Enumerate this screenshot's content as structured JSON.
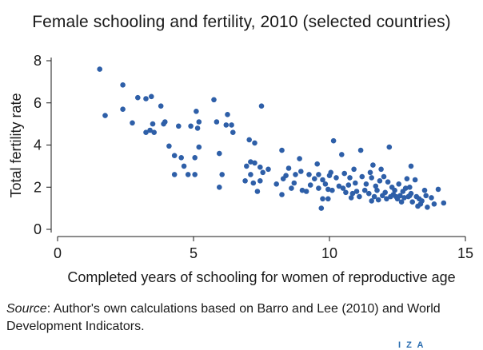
{
  "chart_data": {
    "type": "scatter",
    "title": "Female schooling and fertility, 2010 (selected countries)",
    "xlabel": "Completed years of schooling for women of reproductive age",
    "ylabel": "Total fertility rate",
    "xlim": [
      0,
      15
    ],
    "ylim": [
      0,
      8
    ],
    "xticks": [
      0,
      5,
      10,
      15
    ],
    "yticks": [
      0,
      2,
      4,
      6,
      8
    ],
    "grid": false,
    "legend": "none",
    "marker_color": "#2e5fa8",
    "points": [
      [
        1.55,
        7.6
      ],
      [
        1.75,
        5.4
      ],
      [
        2.4,
        6.85
      ],
      [
        2.4,
        5.7
      ],
      [
        2.75,
        5.05
      ],
      [
        2.95,
        6.25
      ],
      [
        3.25,
        6.2
      ],
      [
        3.25,
        4.6
      ],
      [
        3.4,
        4.7
      ],
      [
        3.45,
        6.3
      ],
      [
        3.5,
        5.0
      ],
      [
        3.55,
        4.6
      ],
      [
        3.8,
        5.85
      ],
      [
        3.9,
        5.0
      ],
      [
        3.95,
        5.1
      ],
      [
        4.1,
        3.95
      ],
      [
        4.3,
        3.5
      ],
      [
        4.3,
        2.6
      ],
      [
        4.45,
        4.9
      ],
      [
        4.55,
        3.4
      ],
      [
        4.65,
        3.0
      ],
      [
        4.8,
        2.6
      ],
      [
        4.9,
        4.9
      ],
      [
        5.05,
        3.4
      ],
      [
        5.05,
        2.6
      ],
      [
        5.1,
        5.6
      ],
      [
        5.15,
        4.8
      ],
      [
        5.2,
        3.9
      ],
      [
        5.2,
        5.1
      ],
      [
        5.75,
        6.15
      ],
      [
        5.85,
        5.1
      ],
      [
        5.95,
        2.0
      ],
      [
        5.95,
        3.6
      ],
      [
        6.05,
        2.6
      ],
      [
        6.25,
        5.45
      ],
      [
        6.2,
        4.95
      ],
      [
        6.4,
        4.95
      ],
      [
        6.45,
        4.6
      ],
      [
        6.9,
        2.3
      ],
      [
        6.95,
        3.0
      ],
      [
        7.05,
        4.25
      ],
      [
        7.1,
        3.2
      ],
      [
        7.1,
        2.6
      ],
      [
        7.2,
        2.2
      ],
      [
        7.25,
        3.15
      ],
      [
        7.25,
        4.1
      ],
      [
        7.35,
        1.8
      ],
      [
        7.45,
        2.3
      ],
      [
        7.45,
        2.95
      ],
      [
        7.5,
        5.85
      ],
      [
        7.55,
        2.7
      ],
      [
        7.75,
        2.85
      ],
      [
        8.05,
        2.15
      ],
      [
        8.25,
        3.75
      ],
      [
        8.25,
        1.65
      ],
      [
        8.3,
        2.4
      ],
      [
        8.4,
        2.55
      ],
      [
        8.5,
        2.9
      ],
      [
        8.6,
        1.95
      ],
      [
        8.7,
        2.2
      ],
      [
        8.75,
        2.6
      ],
      [
        8.9,
        3.35
      ],
      [
        8.95,
        2.75
      ],
      [
        9.0,
        1.85
      ],
      [
        9.15,
        1.8
      ],
      [
        9.25,
        2.6
      ],
      [
        9.3,
        2.1
      ],
      [
        9.45,
        2.4
      ],
      [
        9.55,
        3.1
      ],
      [
        9.6,
        2.6
      ],
      [
        9.6,
        1.95
      ],
      [
        9.7,
        1.0
      ],
      [
        9.75,
        1.45
      ],
      [
        9.75,
        2.35
      ],
      [
        9.85,
        2.15
      ],
      [
        9.95,
        1.45
      ],
      [
        10.0,
        2.55
      ],
      [
        10.05,
        2.7
      ],
      [
        10.1,
        1.85
      ],
      [
        10.15,
        4.2
      ],
      [
        10.25,
        2.45
      ],
      [
        10.35,
        2.05
      ],
      [
        10.45,
        3.55
      ],
      [
        10.5,
        1.95
      ],
      [
        10.55,
        2.65
      ],
      [
        10.6,
        1.75
      ],
      [
        10.7,
        2.1
      ],
      [
        10.75,
        2.45
      ],
      [
        10.8,
        1.5
      ],
      [
        10.9,
        2.85
      ],
      [
        10.95,
        2.2
      ],
      [
        11.0,
        1.8
      ],
      [
        11.1,
        1.55
      ],
      [
        11.15,
        3.75
      ],
      [
        11.2,
        2.5
      ],
      [
        11.3,
        1.85
      ],
      [
        11.35,
        2.15
      ],
      [
        11.45,
        1.7
      ],
      [
        11.5,
        2.7
      ],
      [
        11.55,
        2.45
      ],
      [
        11.6,
        3.05
      ],
      [
        11.65,
        1.55
      ],
      [
        11.7,
        2.05
      ],
      [
        11.75,
        1.85
      ],
      [
        11.8,
        1.4
      ],
      [
        11.85,
        2.3
      ],
      [
        11.9,
        2.85
      ],
      [
        11.95,
        1.6
      ],
      [
        12.0,
        2.5
      ],
      [
        12.05,
        1.75
      ],
      [
        12.1,
        1.45
      ],
      [
        12.15,
        2.25
      ],
      [
        12.2,
        3.9
      ],
      [
        12.25,
        1.55
      ],
      [
        12.3,
        2.0
      ],
      [
        12.35,
        1.65
      ],
      [
        12.4,
        1.85
      ],
      [
        12.5,
        1.45
      ],
      [
        12.55,
        2.15
      ],
      [
        12.6,
        1.6
      ],
      [
        12.65,
        1.3
      ],
      [
        12.7,
        1.8
      ],
      [
        12.75,
        1.5
      ],
      [
        12.8,
        1.95
      ],
      [
        12.85,
        2.4
      ],
      [
        12.9,
        1.55
      ],
      [
        12.95,
        1.6
      ],
      [
        12.95,
        2.0
      ],
      [
        13.0,
        1.7
      ],
      [
        13.05,
        1.3
      ],
      [
        13.15,
        2.35
      ],
      [
        13.2,
        1.55
      ],
      [
        13.3,
        1.45
      ],
      [
        13.35,
        1.2
      ],
      [
        13.4,
        1.35
      ],
      [
        13.5,
        1.85
      ],
      [
        13.55,
        1.6
      ],
      [
        13.6,
        1.05
      ],
      [
        13.75,
        1.5
      ],
      [
        13.85,
        1.2
      ],
      [
        14.0,
        1.9
      ],
      [
        14.2,
        1.25
      ],
      [
        13.0,
        3.0
      ],
      [
        13.25,
        1.1
      ],
      [
        12.45,
        1.55
      ],
      [
        11.55,
        1.35
      ],
      [
        10.85,
        1.7
      ],
      [
        9.95,
        1.9
      ]
    ]
  },
  "source": {
    "label": "Source",
    "text": ": Author's own calculations based on Barro and Lee (2010) and World Development Indicators."
  },
  "logo": {
    "text": "I Z A"
  }
}
